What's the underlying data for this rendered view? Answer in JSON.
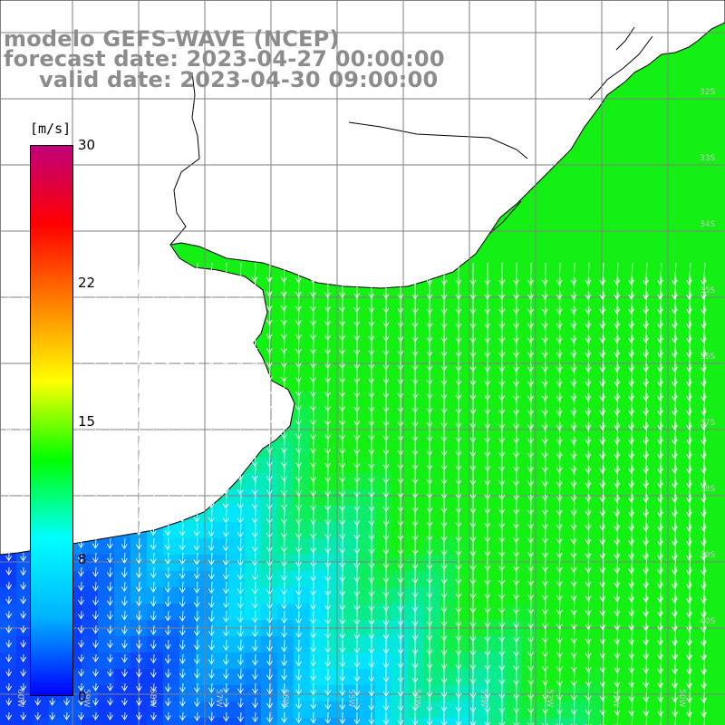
{
  "title": {
    "line1": "modelo GEFS-WAVE (NCEP)",
    "line2": "forecast date: 2023-04-27 00:00:00",
    "line3": "valid date: 2023-04-30 09:00:00"
  },
  "colorbar": {
    "unit": "[m/s]",
    "ticks": [
      "30",
      "22",
      "15",
      "8",
      "0"
    ],
    "min": 0,
    "max": 30,
    "colors": [
      "#0000ff",
      "#00b4ff",
      "#00ffff",
      "#00ff00",
      "#ffff00",
      "#ff8000",
      "#ff0000",
      "#c0007a"
    ]
  },
  "map": {
    "land_color": "#ffffff",
    "ocean_colors": {
      "calm": "#0a3cff",
      "moderate": "#00e6ff",
      "strong": "#14f014"
    },
    "grid_color": "#7f7f7f",
    "lon_labels": [
      "60W",
      "59W",
      "58W",
      "57W",
      "56W",
      "55W",
      "54W",
      "53W",
      "52W",
      "51W",
      "50W"
    ],
    "lat_labels": [
      "32S",
      "33S",
      "34S",
      "35S",
      "36S",
      "37S",
      "38S",
      "39S",
      "40S"
    ]
  }
}
